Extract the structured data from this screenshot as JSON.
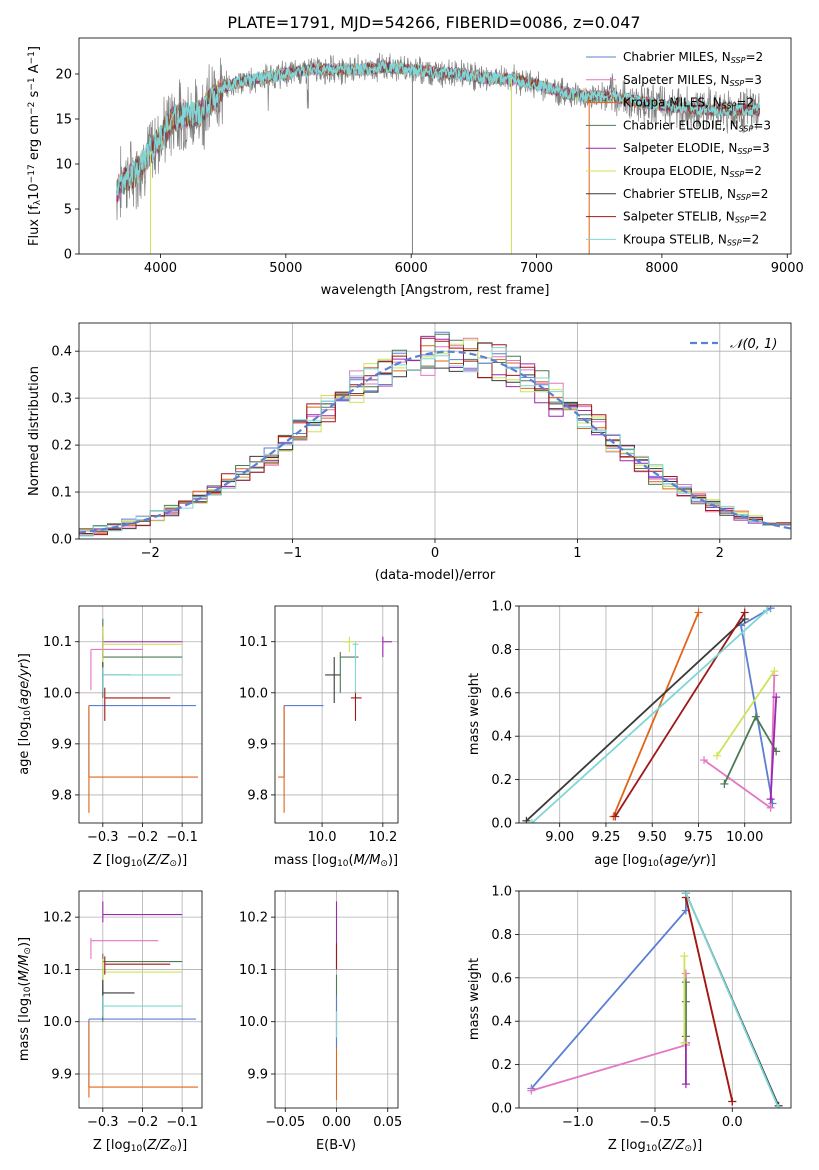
{
  "title": "PLATE=1791, MJD=54266, FIBERID=0086, z=0.047",
  "colors": {
    "chabrier_miles": "#5b7fd3",
    "salpeter_miles": "#e377c2",
    "kroupa_miles": "#e1651a",
    "chabrier_elodie": "#4d7a55",
    "salpeter_elodie": "#9c27b0",
    "kroupa_elodie": "#cde35a",
    "chabrier_stelib": "#3a3a3a",
    "salpeter_stelib": "#a01818",
    "kroupa_stelib": "#7fd6d6",
    "data": "#808080"
  },
  "chart_data": [
    {
      "type": "line",
      "id": "spectrum",
      "xlabel": "wavelength [Angstrom, rest frame]",
      "ylabel_main": "Flux [f",
      "ylabel_sub": "λ",
      "ylabel_mid": "10",
      "ylabel_sup1": "−17",
      "ylabel_rest": " erg cm",
      "ylabel_sup2": "−2",
      "ylabel_rest2": " s",
      "ylabel_sup3": "−1",
      "ylabel_rest3": " A",
      "ylabel_sup4": "−1",
      "ylabel_end": "]",
      "xlim": [
        3350,
        9030
      ],
      "ylim": [
        0,
        24
      ],
      "xticks": [
        "4000",
        "5000",
        "6000",
        "7000",
        "8000",
        "9000"
      ],
      "yticks": [
        "0",
        "5",
        "10",
        "15",
        "20"
      ],
      "legend": [
        {
          "main": "Chabrier MILES, N",
          "sub": "SSP",
          "end": "=2"
        },
        {
          "main": "Salpeter MILES, N",
          "sub": "SSP",
          "end": "=3"
        },
        {
          "main": "Kroupa MILES, N",
          "sub": "SSP",
          "end": "=2"
        },
        {
          "main": "Chabrier ELODIE, N",
          "sub": "SSP",
          "end": "=3"
        },
        {
          "main": "Salpeter ELODIE, N",
          "sub": "SSP",
          "end": "=3"
        },
        {
          "main": "Kroupa ELODIE, N",
          "sub": "SSP",
          "end": "=2"
        },
        {
          "main": "Chabrier STELIB, N",
          "sub": "SSP",
          "end": "=2"
        },
        {
          "main": "Salpeter STELIB, N",
          "sub": "SSP",
          "end": "=2"
        },
        {
          "main": "Kroupa STELIB, N",
          "sub": "SSP",
          "end": "=2"
        }
      ],
      "continuum": [
        [
          3650,
          7
        ],
        [
          3700,
          8
        ],
        [
          3800,
          9
        ],
        [
          3900,
          11
        ],
        [
          4000,
          13
        ],
        [
          4100,
          15
        ],
        [
          4200,
          15.5
        ],
        [
          4300,
          15.5
        ],
        [
          4400,
          17
        ],
        [
          4500,
          18.5
        ],
        [
          4600,
          19
        ],
        [
          4800,
          19.5
        ],
        [
          5000,
          20
        ],
        [
          5200,
          20.5
        ],
        [
          5400,
          20.5
        ],
        [
          5600,
          20.5
        ],
        [
          5800,
          20.8
        ],
        [
          6000,
          20.5
        ],
        [
          6200,
          20.2
        ],
        [
          6400,
          20
        ],
        [
          6600,
          19.5
        ],
        [
          6800,
          19.5
        ],
        [
          7000,
          18.8
        ],
        [
          7200,
          18
        ],
        [
          7400,
          17.5
        ],
        [
          7600,
          17.5
        ],
        [
          7800,
          17
        ],
        [
          8000,
          16.5
        ],
        [
          8200,
          16.2
        ],
        [
          8400,
          16
        ],
        [
          8600,
          16
        ],
        [
          8800,
          16
        ]
      ]
    },
    {
      "type": "line",
      "id": "residuals",
      "xlabel": "(data-model)/error",
      "ylabel": "Normed distribution",
      "xlim": [
        -2.5,
        2.5
      ],
      "ylim": [
        0,
        0.46
      ],
      "xticks": [
        "−2",
        "−1",
        "0",
        "1",
        "2"
      ],
      "yticks": [
        "0.0",
        "0.1",
        "0.2",
        "0.3",
        "0.4"
      ],
      "legend_label": "𝒩(0, 1)",
      "normal_mean": 0.1,
      "normal_sigma": 1.0
    },
    {
      "type": "scatter",
      "id": "age_vs_Z",
      "xlabel_main": "Z [log",
      "xlabel_sub": "10",
      "xlabel_rest": "(Z/Z",
      "xlabel_sub2": "⊙",
      "xlabel_end": ")]",
      "ylabel_main": "age  [log",
      "ylabel_sub": "10",
      "ylabel_rest": "(age/yr)]",
      "xlim": [
        -0.36,
        -0.05
      ],
      "ylim": [
        9.745,
        10.17
      ],
      "xticks": [
        "−0.3",
        "−0.2",
        "−0.1"
      ],
      "yticks": [
        "9.8",
        "9.9",
        "10.0",
        "10.1"
      ],
      "points": [
        {
          "s": "chabrier_miles",
          "x": -0.335,
          "y": 9.975,
          "xr": [
            -0.335,
            -0.065
          ],
          "yr": [
            9.835,
            9.975
          ]
        },
        {
          "s": "salpeter_miles",
          "x": -0.33,
          "y": 10.085,
          "xr": [
            -0.33,
            -0.2
          ],
          "yr": [
            10.005,
            10.085
          ]
        },
        {
          "s": "kroupa_miles",
          "x": -0.335,
          "y": 9.835,
          "xr": [
            -0.335,
            -0.06
          ],
          "yr": [
            9.765,
            9.975
          ]
        },
        {
          "s": "chabrier_elodie",
          "x": -0.3,
          "y": 10.07,
          "xr": [
            -0.3,
            -0.1
          ],
          "yr": [
            9.99,
            10.145
          ]
        },
        {
          "s": "salpeter_elodie",
          "x": -0.3,
          "y": 10.1,
          "xr": [
            -0.3,
            -0.1
          ],
          "yr": [
            10.07,
            10.11
          ]
        },
        {
          "s": "kroupa_elodie",
          "x": -0.3,
          "y": 10.095,
          "xr": [
            -0.3,
            -0.1
          ],
          "yr": [
            10.04,
            10.13
          ]
        },
        {
          "s": "chabrier_stelib",
          "x": -0.3,
          "y": 10.035,
          "xr": [
            -0.3,
            -0.23
          ],
          "yr": [
            10.0,
            10.06
          ]
        },
        {
          "s": "salpeter_stelib",
          "x": -0.295,
          "y": 9.99,
          "xr": [
            -0.295,
            -0.13
          ],
          "yr": [
            9.945,
            10.01
          ]
        },
        {
          "s": "kroupa_stelib",
          "x": -0.3,
          "y": 10.035,
          "xr": [
            -0.3,
            -0.1
          ],
          "yr": [
            10.0,
            10.05
          ]
        }
      ]
    },
    {
      "type": "scatter",
      "id": "age_vs_mass",
      "xlabel_main": "mass [log",
      "xlabel_sub": "10",
      "xlabel_rest": "(M/M",
      "xlabel_sub2": "⊙",
      "xlabel_end": ")]",
      "xlim": [
        9.845,
        10.25
      ],
      "ylim": [
        9.745,
        10.17
      ],
      "xticks": [
        "10.0",
        "10.2"
      ],
      "yticks": [
        "9.8",
        "9.9",
        "10.0",
        "10.1"
      ],
      "points": [
        {
          "s": "chabrier_miles",
          "x": 9.875,
          "y": 9.975,
          "xr": [
            9.875,
            10.005
          ],
          "yr": [
            9.835,
            9.975
          ]
        },
        {
          "s": "kroupa_miles",
          "x": 9.875,
          "y": 9.835,
          "xr": [
            9.855,
            9.875
          ],
          "yr": [
            9.765,
            9.975
          ]
        },
        {
          "s": "chabrier_elodie",
          "x": 10.06,
          "y": 10.07,
          "xr": [
            10.06,
            10.12
          ],
          "yr": [
            10.0,
            10.08
          ]
        },
        {
          "s": "salpeter_elodie",
          "x": 10.2,
          "y": 10.1,
          "xr": [
            10.2,
            10.23
          ],
          "yr": [
            10.07,
            10.11
          ]
        },
        {
          "s": "kroupa_elodie",
          "x": 10.09,
          "y": 10.1,
          "xr": [
            10.07,
            10.11
          ],
          "yr": [
            10.08,
            10.11
          ]
        },
        {
          "s": "chabrier_stelib",
          "x": 10.04,
          "y": 10.035,
          "xr": [
            10.01,
            10.06
          ],
          "yr": [
            9.98,
            10.07
          ]
        },
        {
          "s": "salpeter_stelib",
          "x": 10.11,
          "y": 9.99,
          "xr": [
            10.095,
            10.13
          ],
          "yr": [
            9.945,
            10.005
          ]
        },
        {
          "s": "kroupa_stelib",
          "x": 10.11,
          "y": 10.095,
          "xr": [
            10.1,
            10.12
          ],
          "yr": [
            10.0,
            10.1
          ]
        }
      ]
    },
    {
      "type": "line",
      "id": "massweight_vs_age",
      "xlabel_main": "age  [log",
      "xlabel_sub": "10",
      "xlabel_rest": "(age/yr)]",
      "ylabel": "mass weight",
      "xlim": [
        8.78,
        10.25
      ],
      "ylim": [
        0,
        1
      ],
      "xticks": [
        "9.00",
        "9.25",
        "9.50",
        "9.75",
        "10.00"
      ],
      "yticks": [
        "0.0",
        "0.2",
        "0.4",
        "0.6",
        "0.8",
        "1.0"
      ],
      "series": [
        {
          "s": "chabrier_miles",
          "x": [
            10.14,
            9.98,
            10.15
          ],
          "y": [
            0.99,
            0.91,
            0.09
          ]
        },
        {
          "s": "salpeter_miles",
          "x": [
            9.78,
            10.14,
            10.16
          ],
          "y": [
            0.29,
            0.07,
            0.68
          ]
        },
        {
          "s": "kroupa_miles",
          "x": [
            9.29,
            9.75
          ],
          "y": [
            0.03,
            0.97
          ]
        },
        {
          "s": "chabrier_elodie",
          "x": [
            9.89,
            10.06,
            10.17
          ],
          "y": [
            0.18,
            0.49,
            0.33
          ]
        },
        {
          "s": "salpeter_elodie",
          "x": [
            10.14,
            10.17
          ],
          "y": [
            0.11,
            0.58
          ]
        },
        {
          "s": "kroupa_elodie",
          "x": [
            9.85,
            10.16
          ],
          "y": [
            0.31,
            0.7
          ]
        },
        {
          "s": "chabrier_stelib",
          "x": [
            8.82,
            10.0
          ],
          "y": [
            0.01,
            0.94
          ]
        },
        {
          "s": "salpeter_stelib",
          "x": [
            9.3,
            10.0
          ],
          "y": [
            0.03,
            0.97
          ]
        },
        {
          "s": "kroupa_stelib",
          "x": [
            8.85,
            10.12
          ],
          "y": [
            0.0,
            0.98
          ]
        }
      ]
    },
    {
      "type": "scatter",
      "id": "mass_vs_Z",
      "xlabel_main": "Z [log",
      "xlabel_sub": "10",
      "xlabel_rest": "(Z/Z",
      "xlabel_sub2": "⊙",
      "xlabel_end": ")]",
      "ylabel_main": "mass [log",
      "ylabel_sub": "10",
      "ylabel_rest": "(M/M",
      "ylabel_sub2": "⊙",
      "ylabel_end": ")]",
      "xlim": [
        -0.36,
        -0.05
      ],
      "ylim": [
        9.835,
        10.25
      ],
      "xticks": [
        "−0.3",
        "−0.2",
        "−0.1"
      ],
      "yticks": [
        "9.9",
        "10.0",
        "10.1",
        "10.2"
      ],
      "points": [
        {
          "s": "chabrier_miles",
          "x": -0.335,
          "y": 10.005,
          "xr": [
            -0.335,
            -0.065
          ],
          "yr": [
            9.875,
            10.005
          ]
        },
        {
          "s": "salpeter_miles",
          "x": -0.33,
          "y": 10.155,
          "xr": [
            -0.33,
            -0.16
          ],
          "yr": [
            10.12,
            10.16
          ]
        },
        {
          "s": "kroupa_miles",
          "x": -0.335,
          "y": 9.875,
          "xr": [
            -0.335,
            -0.06
          ],
          "yr": [
            9.855,
            10.0
          ]
        },
        {
          "s": "chabrier_elodie",
          "x": -0.3,
          "y": 10.115,
          "xr": [
            -0.3,
            -0.1
          ],
          "yr": [
            10.0,
            10.13
          ]
        },
        {
          "s": "salpeter_elodie",
          "x": -0.3,
          "y": 10.205,
          "xr": [
            -0.3,
            -0.1
          ],
          "yr": [
            10.19,
            10.23
          ]
        },
        {
          "s": "kroupa_elodie",
          "x": -0.3,
          "y": 10.095,
          "xr": [
            -0.3,
            -0.1
          ],
          "yr": [
            10.07,
            10.12
          ]
        },
        {
          "s": "chabrier_stelib",
          "x": -0.3,
          "y": 10.055,
          "xr": [
            -0.3,
            -0.22
          ],
          "yr": [
            10.01,
            10.08
          ]
        },
        {
          "s": "salpeter_stelib",
          "x": -0.295,
          "y": 10.11,
          "xr": [
            -0.295,
            -0.13
          ],
          "yr": [
            10.09,
            10.125
          ]
        },
        {
          "s": "kroupa_stelib",
          "x": -0.3,
          "y": 10.03,
          "xr": [
            -0.3,
            -0.1
          ],
          "yr": [
            10.01,
            10.05
          ]
        }
      ]
    },
    {
      "type": "scatter",
      "id": "mass_vs_ebv",
      "xlabel": "E(B-V)",
      "xlim": [
        -0.06,
        0.06
      ],
      "ylim": [
        9.835,
        10.25
      ],
      "xticks": [
        "−0.05",
        "0.00",
        "0.05"
      ],
      "yticks": [
        "9.9",
        "10.0",
        "10.1",
        "10.2"
      ],
      "points": [
        {
          "s": "kroupa_miles",
          "x": 0,
          "y": 9.99,
          "yr": [
            9.85,
            10.05
          ]
        },
        {
          "s": "chabrier_miles",
          "x": 0,
          "y": 10.0,
          "yr": [
            9.95,
            10.05
          ]
        },
        {
          "s": "salpeter_elodie",
          "x": 0,
          "y": 10.2,
          "yr": [
            10.1,
            10.23
          ]
        },
        {
          "s": "salpeter_stelib",
          "x": 0,
          "y": 10.12,
          "yr": [
            10.1,
            10.15
          ]
        },
        {
          "s": "chabrier_elodie",
          "x": 0,
          "y": 10.07,
          "yr": [
            10.05,
            10.09
          ]
        },
        {
          "s": "kroupa_stelib",
          "x": 0,
          "y": 10.0,
          "yr": [
            9.97,
            10.02
          ]
        }
      ]
    },
    {
      "type": "line",
      "id": "massweight_vs_Z",
      "xlabel_main": "Z [log",
      "xlabel_sub": "10",
      "xlabel_rest": "(Z/Z",
      "xlabel_sub2": "⊙",
      "xlabel_end": ")]",
      "ylabel": "mass weight",
      "xlim": [
        -1.38,
        0.38
      ],
      "ylim": [
        0,
        1
      ],
      "xticks": [
        "−1.0",
        "−0.5",
        "0.0"
      ],
      "yticks": [
        "0.0",
        "0.2",
        "0.4",
        "0.6",
        "0.8",
        "1.0"
      ],
      "series": [
        {
          "s": "chabrier_miles",
          "x": [
            -1.3,
            -0.3,
            -0.3
          ],
          "y": [
            0.09,
            0.91,
            0.99
          ]
        },
        {
          "s": "salpeter_miles",
          "x": [
            -1.3,
            -0.3,
            -0.3
          ],
          "y": [
            0.08,
            0.29,
            0.62
          ]
        },
        {
          "s": "kroupa_miles",
          "x": [
            -0.3,
            0.0
          ],
          "y": [
            0.97,
            0.03
          ]
        },
        {
          "s": "chabrier_elodie",
          "x": [
            -0.3,
            -0.3,
            -0.3
          ],
          "y": [
            0.33,
            0.49,
            0.58
          ]
        },
        {
          "s": "salpeter_elodie",
          "x": [
            -0.3,
            -0.3
          ],
          "y": [
            0.11,
            0.3
          ]
        },
        {
          "s": "kroupa_elodie",
          "x": [
            -0.31,
            -0.31
          ],
          "y": [
            0.3,
            0.7
          ]
        },
        {
          "s": "chabrier_stelib",
          "x": [
            -0.3,
            0.3
          ],
          "y": [
            0.99,
            0.01
          ]
        },
        {
          "s": "salpeter_stelib",
          "x": [
            -0.3,
            0.0
          ],
          "y": [
            0.97,
            0.03
          ]
        },
        {
          "s": "kroupa_stelib",
          "x": [
            -0.3,
            0.3
          ],
          "y": [
            0.99,
            0.0
          ]
        }
      ]
    }
  ]
}
